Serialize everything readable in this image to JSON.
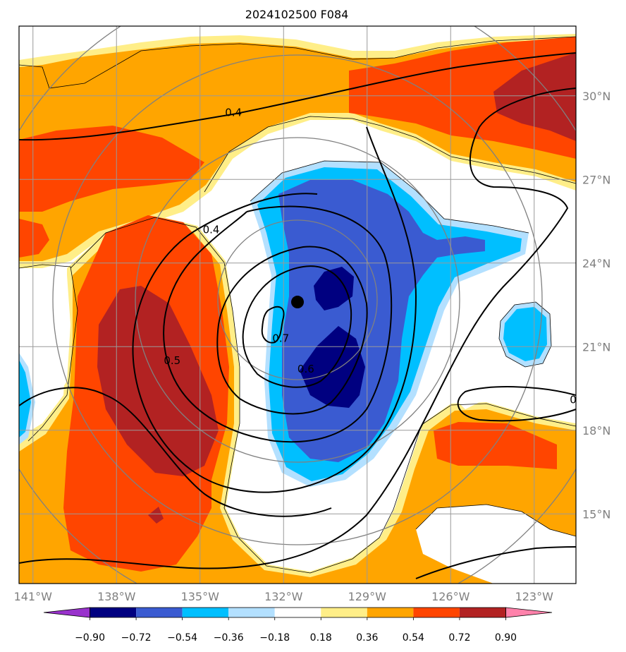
{
  "title": "2024102500 F084",
  "map": {
    "lon_range": [
      -141.5,
      -121.5
    ],
    "lat_range": [
      12.5,
      32.5
    ],
    "lon_ticks": [
      {
        "value": -141,
        "label": "141°W"
      },
      {
        "value": -138,
        "label": "138°W"
      },
      {
        "value": -135,
        "label": "135°W"
      },
      {
        "value": -132,
        "label": "132°W"
      },
      {
        "value": -129,
        "label": "129°W"
      },
      {
        "value": -126,
        "label": "126°W"
      },
      {
        "value": -123,
        "label": "123°W"
      }
    ],
    "lat_ticks": [
      {
        "value": 15,
        "label": "15°N"
      },
      {
        "value": 18,
        "label": "18°N"
      },
      {
        "value": 21,
        "label": "21°N"
      },
      {
        "value": 24,
        "label": "24°N"
      },
      {
        "value": 27,
        "label": "27°N"
      },
      {
        "value": 30,
        "label": "30°N"
      }
    ],
    "grid": true,
    "center_marker": {
      "lon": -131.5,
      "lat": 22.6
    },
    "contour_labels": [
      {
        "text": "0.4",
        "lon": -133.8,
        "lat": 29.4
      },
      {
        "text": "0.4",
        "lon": -134.6,
        "lat": 25.2
      },
      {
        "text": "0.5",
        "lon": -136.0,
        "lat": 20.5
      },
      {
        "text": "0.7",
        "lon": -132.1,
        "lat": 21.3
      },
      {
        "text": "0.6",
        "lon": -131.2,
        "lat": 20.2
      },
      {
        "text": "0",
        "lon": -121.6,
        "lat": 19.1
      }
    ]
  },
  "colorbar": {
    "ticks": [
      "−0.90",
      "−0.72",
      "−0.54",
      "−0.36",
      "−0.18",
      "0.18",
      "0.36",
      "0.54",
      "0.72",
      "0.90"
    ],
    "colors": {
      "under": "#9932cc",
      "bins": [
        "#000080",
        "#3a5bd1",
        "#00bfff",
        "#b3e0ff",
        "#ffffff",
        "#ffee88",
        "#ffa500",
        "#ff4500",
        "#b22222"
      ],
      "over": "#ff82ab"
    }
  }
}
